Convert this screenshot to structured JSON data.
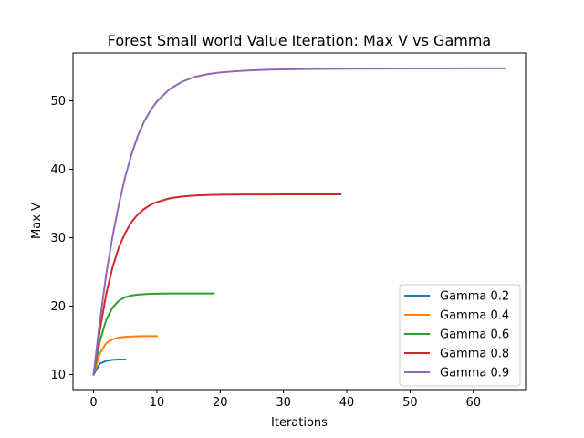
{
  "chart_data": {
    "type": "line",
    "title": "Forest Small world Value Iteration: Max V vs Gamma",
    "xlabel": "Iterations",
    "ylabel": "Max V",
    "xlim": [
      -3.25,
      68.25
    ],
    "ylim": [
      7.8,
      57.0
    ],
    "xticks": [
      0,
      10,
      20,
      30,
      40,
      50,
      60
    ],
    "yticks": [
      10,
      20,
      30,
      40,
      50
    ],
    "grid": false,
    "legend_position": "lower-right",
    "series": [
      {
        "name": "Gamma 0.2",
        "color": "#1f77b4",
        "x": [
          0,
          1,
          2,
          3,
          4,
          5
        ],
        "y": [
          10.0,
          11.6,
          12.0,
          12.15,
          12.2,
          12.2
        ]
      },
      {
        "name": "Gamma 0.4",
        "color": "#ff7f0e",
        "x": [
          0,
          1,
          2,
          3,
          4,
          5,
          6,
          7,
          8,
          9,
          10
        ],
        "y": [
          10.0,
          13.1,
          14.6,
          15.15,
          15.4,
          15.52,
          15.57,
          15.6,
          15.61,
          15.62,
          15.62
        ]
      },
      {
        "name": "Gamma 0.6",
        "color": "#2ca02c",
        "x": [
          0,
          1,
          2,
          3,
          4,
          5,
          6,
          7,
          8,
          9,
          10,
          11,
          12,
          13,
          14,
          15,
          16,
          17,
          18,
          19
        ],
        "y": [
          10.0,
          14.9,
          18.0,
          19.8,
          20.8,
          21.3,
          21.55,
          21.68,
          21.75,
          21.8,
          21.82,
          21.84,
          21.85,
          21.85,
          21.85,
          21.85,
          21.85,
          21.85,
          21.85,
          21.85
        ]
      },
      {
        "name": "Gamma 0.8",
        "color": "#d62728",
        "x": [
          0,
          1,
          2,
          3,
          4,
          5,
          6,
          7,
          8,
          9,
          10,
          12,
          14,
          16,
          18,
          20,
          22,
          24,
          26,
          28,
          30,
          32,
          34,
          36,
          39
        ],
        "y": [
          10.0,
          16.5,
          21.8,
          25.7,
          28.6,
          30.7,
          32.3,
          33.4,
          34.2,
          34.8,
          35.2,
          35.75,
          36.02,
          36.16,
          36.24,
          36.28,
          36.3,
          36.31,
          36.32,
          36.32,
          36.33,
          36.33,
          36.33,
          36.33,
          36.33
        ]
      },
      {
        "name": "Gamma 0.9",
        "color": "#9467bd",
        "x": [
          0,
          1,
          2,
          3,
          4,
          5,
          6,
          7,
          8,
          9,
          10,
          12,
          14,
          16,
          18,
          20,
          22,
          24,
          26,
          28,
          30,
          35,
          40,
          45,
          50,
          55,
          60,
          65
        ],
        "y": [
          10.0,
          17.8,
          24.7,
          30.2,
          34.9,
          38.9,
          42.2,
          44.9,
          47.0,
          48.6,
          49.9,
          51.7,
          52.8,
          53.5,
          53.9,
          54.15,
          54.3,
          54.42,
          54.5,
          54.56,
          54.6,
          54.66,
          54.7,
          54.72,
          54.73,
          54.74,
          54.75,
          54.75
        ]
      }
    ]
  }
}
